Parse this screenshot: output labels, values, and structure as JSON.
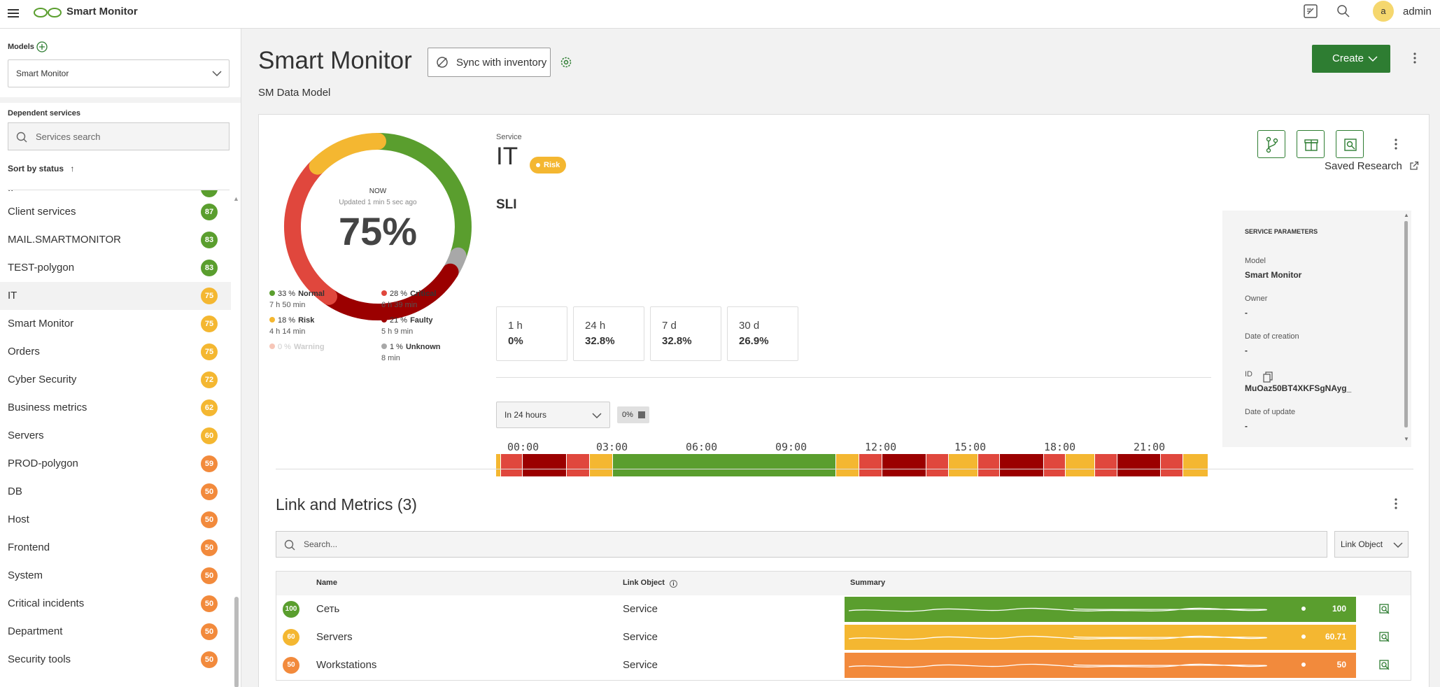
{
  "app": {
    "title": "Smart Monitor",
    "user": "admin",
    "avatar_letter": "a"
  },
  "sidebar": {
    "models_label": "Models",
    "model_selected": "Smart Monitor",
    "dependent_label": "Dependent services",
    "search_placeholder": "Services search",
    "sort_label": "Sort by status",
    "items": [
      {
        "label": "Client services",
        "score": "87",
        "color": "#5a9e2e"
      },
      {
        "label": "MAIL.SMARTMONITOR",
        "score": "83",
        "color": "#5a9e2e"
      },
      {
        "label": "TEST-polygon",
        "score": "83",
        "color": "#5a9e2e"
      },
      {
        "label": "IT",
        "score": "75",
        "color": "#f4b731"
      },
      {
        "label": "Smart Monitor",
        "score": "75",
        "color": "#f4b731"
      },
      {
        "label": "Orders",
        "score": "75",
        "color": "#f4b731"
      },
      {
        "label": "Cyber Security",
        "score": "72",
        "color": "#f4b731"
      },
      {
        "label": "Business metrics",
        "score": "62",
        "color": "#f4b731"
      },
      {
        "label": "Servers",
        "score": "60",
        "color": "#f4b731"
      },
      {
        "label": "PROD-polygon",
        "score": "59",
        "color": "#f28a3c"
      },
      {
        "label": "DB",
        "score": "50",
        "color": "#f28a3c"
      },
      {
        "label": "Host",
        "score": "50",
        "color": "#f28a3c"
      },
      {
        "label": "Frontend",
        "score": "50",
        "color": "#f28a3c"
      },
      {
        "label": "System",
        "score": "50",
        "color": "#f28a3c"
      },
      {
        "label": "Critical incidents",
        "score": "50",
        "color": "#f28a3c"
      },
      {
        "label": "Department",
        "score": "50",
        "color": "#f28a3c"
      },
      {
        "label": "Security tools",
        "score": "50",
        "color": "#f28a3c"
      }
    ]
  },
  "header": {
    "title": "Smart Monitor",
    "sync_label": "Sync with inventory",
    "subtitle": "SM Data Model",
    "create_label": "Create"
  },
  "service": {
    "kicker": "Service",
    "name": "IT",
    "status": "Risk",
    "sli_title": "SLI",
    "saved_research": "Saved Research",
    "sli": [
      {
        "period": "1 h",
        "value": "0%"
      },
      {
        "period": "24 h",
        "value": "32.8%"
      },
      {
        "period": "7 d",
        "value": "32.8%"
      },
      {
        "period": "30 d",
        "value": "26.9%"
      }
    ],
    "range_select": "In 24 hours",
    "range_chip": "0%"
  },
  "donut": {
    "now": "NOW",
    "updated": "Updated 1 min 5 sec ago",
    "value": "75%",
    "legend": [
      {
        "pct": "33 %",
        "name": "Normal",
        "dur": "7 h 50 min",
        "color": "#5a9e2e",
        "muted": false
      },
      {
        "pct": "28 %",
        "name": "Critical",
        "dur": "6 h 39 min",
        "color": "#e0473d",
        "muted": false
      },
      {
        "pct": "18 %",
        "name": "Risk",
        "dur": "4 h 14 min",
        "color": "#f4b731",
        "muted": false
      },
      {
        "pct": "21 %",
        "name": "Faulty",
        "dur": "5 h 9 min",
        "color": "#9b0000",
        "muted": false
      },
      {
        "pct": "0 %",
        "name": "Warning",
        "dur": "",
        "color": "#f6c6b8",
        "muted": true
      },
      {
        "pct": "1 %",
        "name": "Unknown",
        "dur": "8 min",
        "color": "#a8a8a8",
        "muted": false
      }
    ]
  },
  "timeline": {
    "labels": [
      "00:00",
      "03:00",
      "06:00",
      "09:00",
      "12:00",
      "15:00",
      "18:00",
      "21:00"
    ],
    "segments": [
      {
        "c": "#f4b731",
        "w": 0.7
      },
      {
        "c": "#e0473d",
        "w": 3
      },
      {
        "c": "#9b0000",
        "w": 6.2
      },
      {
        "c": "#e0473d",
        "w": 3.2
      },
      {
        "c": "#f4b731",
        "w": 3.2
      },
      {
        "c": "#5a9e2e",
        "w": 31.3
      },
      {
        "c": "#f4b731",
        "w": 3.2
      },
      {
        "c": "#e0473d",
        "w": 3.2
      },
      {
        "c": "#9b0000",
        "w": 6.2
      },
      {
        "c": "#e0473d",
        "w": 3.1
      },
      {
        "c": "#f4b731",
        "w": 4.1
      },
      {
        "c": "#e0473d",
        "w": 3.1
      },
      {
        "c": "#9b0000",
        "w": 6.1
      },
      {
        "c": "#e0473d",
        "w": 3.1
      },
      {
        "c": "#f4b731",
        "w": 4.1
      },
      {
        "c": "#e0473d",
        "w": 3.1
      },
      {
        "c": "#9b0000",
        "w": 6.1
      },
      {
        "c": "#e0473d",
        "w": 3.1
      },
      {
        "c": "#f4b731",
        "w": 3.5
      }
    ]
  },
  "params": {
    "title": "SERVICE PARAMETERS",
    "fields": [
      {
        "label": "Model",
        "value": "Smart Monitor"
      },
      {
        "label": "Owner",
        "value": "-"
      },
      {
        "label": "Date of creation",
        "value": "-"
      },
      {
        "label": "ID",
        "value": "MuOaz50BT4XKFSgNAyg_"
      },
      {
        "label": "Date of update",
        "value": "-"
      }
    ]
  },
  "links": {
    "title": "Link and Metrics (3)",
    "search_placeholder": "Search...",
    "filter_label": "Link Object",
    "columns": {
      "name": "Name",
      "link": "Link Object",
      "summary": "Summary"
    },
    "rows": [
      {
        "score": "100",
        "name": "Сеть",
        "link": "Service",
        "value": "100",
        "color": "#5a9e2e"
      },
      {
        "score": "60",
        "name": "Servers",
        "link": "Service",
        "value": "60.71",
        "color": "#f4b731"
      },
      {
        "score": "50",
        "name": "Workstations",
        "link": "Service",
        "value": "50",
        "color": "#f28a3c"
      }
    ]
  }
}
